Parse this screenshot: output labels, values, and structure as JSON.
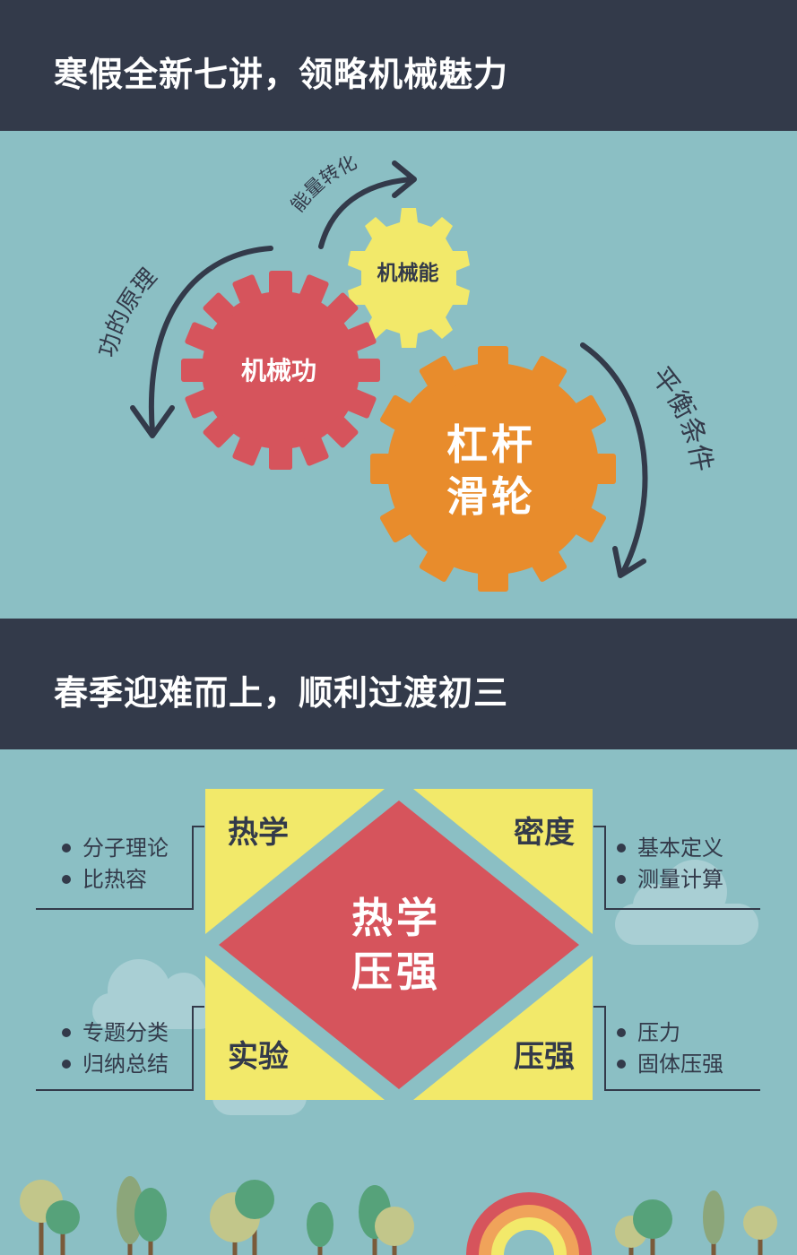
{
  "banners": [
    {
      "title": "寒假全新七讲，领略机械魅力"
    },
    {
      "title": "春季迎难而上，顺利过渡初三"
    }
  ],
  "gears": {
    "red": {
      "label": "机械功",
      "color": "#d6545c"
    },
    "yellow": {
      "label": "机械能",
      "color": "#f2e96a"
    },
    "orange": {
      "line1": "杠杆",
      "line2": "滑轮",
      "color": "#e88c2c"
    }
  },
  "arrows": {
    "left": "功的原理",
    "top": "能量转化",
    "right": "平衡条件"
  },
  "diagram": {
    "center_line1": "热学",
    "center_line2": "压强",
    "quadrants": {
      "top_left": "热学",
      "top_right": "密度",
      "bottom_left": "实验",
      "bottom_right": "压强"
    },
    "bullets": {
      "top_left": [
        "分子理论",
        "比热容"
      ],
      "top_right": [
        "基本定义",
        "测量计算"
      ],
      "bottom_left": [
        "专题分类",
        "归纳总结"
      ],
      "bottom_right": [
        "压力",
        "固体压强"
      ]
    }
  },
  "colors": {
    "background": "#8bbfc4",
    "banner": "#333a4a",
    "red": "#d6545c",
    "yellow": "#f2e96a",
    "orange": "#e88c2c",
    "dark": "#333a4a"
  }
}
